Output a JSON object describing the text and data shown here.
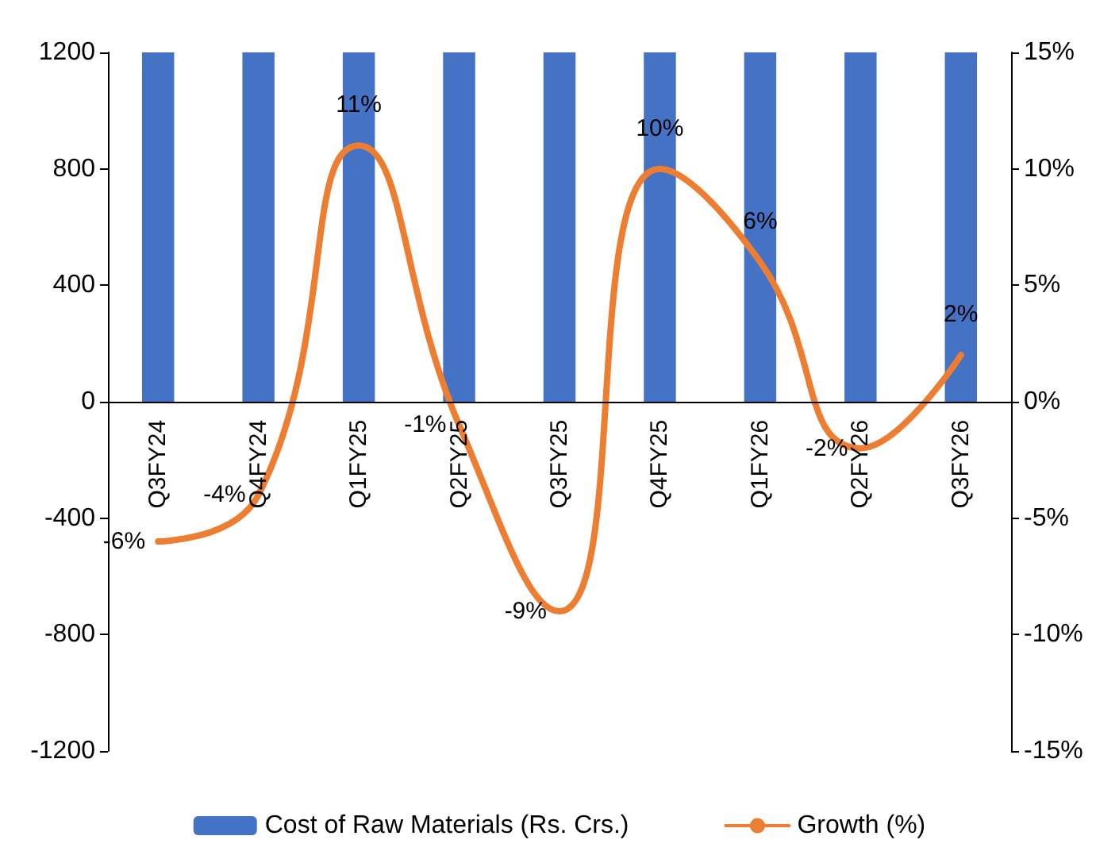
{
  "chart_data": {
    "type": "bar",
    "categories": [
      "Q3FY24",
      "Q4FY24",
      "Q1FY25",
      "Q2FY25",
      "Q3FY25",
      "Q4FY25",
      "Q1FY26",
      "Q2FY26",
      "Q3FY26"
    ],
    "series": [
      {
        "name": "Cost of Raw Materials (Rs. Crs.)",
        "color": "#4472c4",
        "values": [
          1200,
          1200,
          1200,
          1200,
          1200,
          1200,
          1200,
          1200,
          1200
        ]
      },
      {
        "name": "Growth (%)",
        "type": "line",
        "axis": "y2",
        "color": "#ed7d31",
        "values": [
          -6,
          -4,
          11,
          -1,
          -9,
          10,
          6,
          -2,
          2
        ],
        "value_labels": [
          "-6%",
          "-4%",
          "11%",
          "-1%",
          "-9%",
          "10%",
          "6%",
          "-2%",
          "2%"
        ]
      }
    ],
    "ylim": [
      -1200,
      1200
    ],
    "yticks": [
      -1200,
      -800,
      -400,
      0,
      400,
      800,
      1200
    ],
    "y2lim": [
      -15,
      15
    ],
    "y2ticks": [
      {
        "value": -15,
        "label": "-15%"
      },
      {
        "value": -10,
        "label": "-10%"
      },
      {
        "value": -5,
        "label": "-5%"
      },
      {
        "value": 0,
        "label": "0%"
      },
      {
        "value": 5,
        "label": "5%"
      },
      {
        "value": 10,
        "label": "10%"
      },
      {
        "value": 15,
        "label": "15%"
      }
    ],
    "grid": false,
    "legend": "bottom",
    "marker": "none",
    "line_style": "solid"
  }
}
